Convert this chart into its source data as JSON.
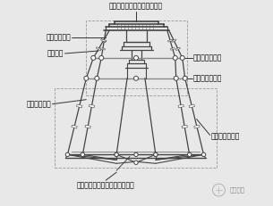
{
  "bg_color": "#e8e8e8",
  "line_color": "#444444",
  "dashed_color": "#999999",
  "gray_line": "#888888",
  "title_top": "变形测量机构静平台（固定）",
  "label_left1": "变形测量机构",
  "label_left2": "弹性轴承",
  "label_left3": "三维力传感器",
  "label_right1": "测量机构动平台",
  "label_right2": "加载机构动平台",
  "label_right3": "多维力加载机构",
  "label_bottom": "多维力加载机构静平台（固定）",
  "watermark": "豆沙冒库",
  "fig_width": 3.05,
  "fig_height": 2.31,
  "dpi": 100
}
